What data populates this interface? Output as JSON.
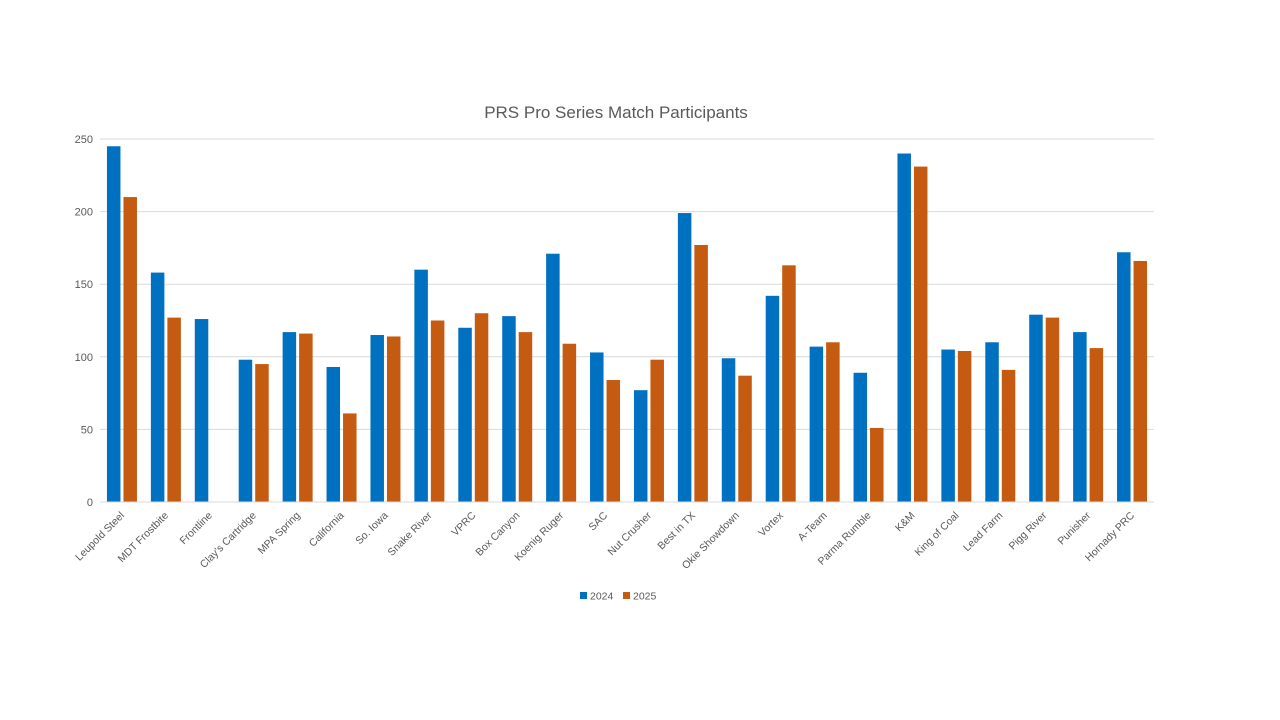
{
  "chart_data": {
    "type": "bar",
    "title": "PRS Pro Series Match Participants",
    "xlabel": "",
    "ylabel": "",
    "ylim": [
      0,
      250
    ],
    "yticks": [
      0,
      50,
      100,
      150,
      200,
      250
    ],
    "grid": true,
    "legend_position": "bottom",
    "categories": [
      "Leupold Steel",
      "MDT Frostbite",
      "Frontline",
      "Clay's Cartridge",
      "MPA Spring",
      "California",
      "So. Iowa",
      "Snake River",
      "VPRC",
      "Box Canyon",
      "Koenig Ruger",
      "SAC",
      "Nut Crusher",
      "Best in TX",
      "Okie Showdown",
      "Vortex",
      "A-Team",
      "Parma Rumble",
      "K&M",
      "King of Coal",
      "Lead Farm",
      "Pigg River",
      "Punisher",
      "Hornady PRC"
    ],
    "series": [
      {
        "name": "2024",
        "color": "#0070c0",
        "values": [
          245,
          158,
          126,
          98,
          117,
          93,
          115,
          160,
          120,
          128,
          171,
          103,
          77,
          199,
          99,
          142,
          107,
          89,
          240,
          105,
          110,
          129,
          117,
          172
        ]
      },
      {
        "name": "2025",
        "color": "#c55a11",
        "values": [
          210,
          127,
          null,
          95,
          116,
          61,
          114,
          125,
          130,
          117,
          109,
          84,
          98,
          177,
          87,
          163,
          110,
          51,
          231,
          104,
          91,
          127,
          106,
          166
        ]
      }
    ]
  }
}
